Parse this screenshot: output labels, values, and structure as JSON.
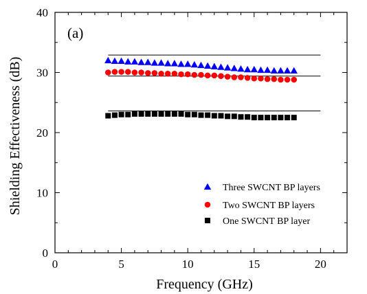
{
  "chart_data": {
    "type": "scatter",
    "panel_label": "(a)",
    "xlabel": "Frequency (GHz)",
    "ylabel": "Shielding Effectiveness (dB)",
    "xlim": [
      0,
      22
    ],
    "ylim": [
      0,
      40
    ],
    "x_ticks": [
      0,
      5,
      10,
      15,
      20
    ],
    "y_ticks": [
      0,
      10,
      20,
      30,
      40
    ],
    "legend_position": "bottom-right",
    "series": [
      {
        "name": "Three SWCNT BP layers",
        "marker": "triangle",
        "color": "#0000ff",
        "x": [
          4.0,
          4.5,
          5.0,
          5.5,
          6.0,
          6.5,
          7.0,
          7.5,
          8.0,
          8.5,
          9.0,
          9.5,
          10.0,
          10.5,
          11.0,
          11.5,
          12.0,
          12.5,
          13.0,
          13.5,
          14.0,
          14.5,
          15.0,
          15.5,
          16.0,
          16.5,
          17.0,
          17.5,
          18.0
        ],
        "y": [
          32.0,
          31.9,
          31.9,
          31.8,
          31.8,
          31.7,
          31.7,
          31.6,
          31.6,
          31.5,
          31.5,
          31.4,
          31.4,
          31.3,
          31.2,
          31.1,
          31.0,
          30.9,
          30.8,
          30.7,
          30.6,
          30.5,
          30.5,
          30.4,
          30.4,
          30.3,
          30.3,
          30.3,
          30.3
        ]
      },
      {
        "name": "Two SWCNT BP layers",
        "marker": "circle",
        "color": "#ff0000",
        "x": [
          4.0,
          4.5,
          5.0,
          5.5,
          6.0,
          6.5,
          7.0,
          7.5,
          8.0,
          8.5,
          9.0,
          9.5,
          10.0,
          10.5,
          11.0,
          11.5,
          12.0,
          12.5,
          13.0,
          13.5,
          14.0,
          14.5,
          15.0,
          15.5,
          16.0,
          16.5,
          17.0,
          17.5,
          18.0
        ],
        "y": [
          30.0,
          30.1,
          30.1,
          30.1,
          30.0,
          30.0,
          29.9,
          29.9,
          29.8,
          29.8,
          29.8,
          29.7,
          29.7,
          29.6,
          29.6,
          29.5,
          29.5,
          29.4,
          29.3,
          29.2,
          29.2,
          29.1,
          29.0,
          29.0,
          28.9,
          28.9,
          28.8,
          28.8,
          28.8
        ]
      },
      {
        "name": "One SWCNT BP layer",
        "marker": "square",
        "color": "#000000",
        "x": [
          4.0,
          4.5,
          5.0,
          5.5,
          6.0,
          6.5,
          7.0,
          7.5,
          8.0,
          8.5,
          9.0,
          9.5,
          10.0,
          10.5,
          11.0,
          11.5,
          12.0,
          12.5,
          13.0,
          13.5,
          14.0,
          14.5,
          15.0,
          15.5,
          16.0,
          16.5,
          17.0,
          17.5,
          18.0
        ],
        "y": [
          22.8,
          22.9,
          23.0,
          23.0,
          23.1,
          23.1,
          23.1,
          23.1,
          23.1,
          23.1,
          23.1,
          23.1,
          23.0,
          23.0,
          22.9,
          22.9,
          22.8,
          22.8,
          22.7,
          22.7,
          22.6,
          22.6,
          22.5,
          22.5,
          22.5,
          22.5,
          22.5,
          22.5,
          22.5
        ]
      }
    ],
    "reference_lines": [
      {
        "x": [
          4.0,
          20.0
        ],
        "y": [
          32.9,
          32.9
        ]
      },
      {
        "x": [
          4.0,
          20.0
        ],
        "y": [
          29.4,
          29.4
        ]
      },
      {
        "x": [
          4.0,
          20.0
        ],
        "y": [
          23.6,
          23.6
        ]
      }
    ]
  }
}
